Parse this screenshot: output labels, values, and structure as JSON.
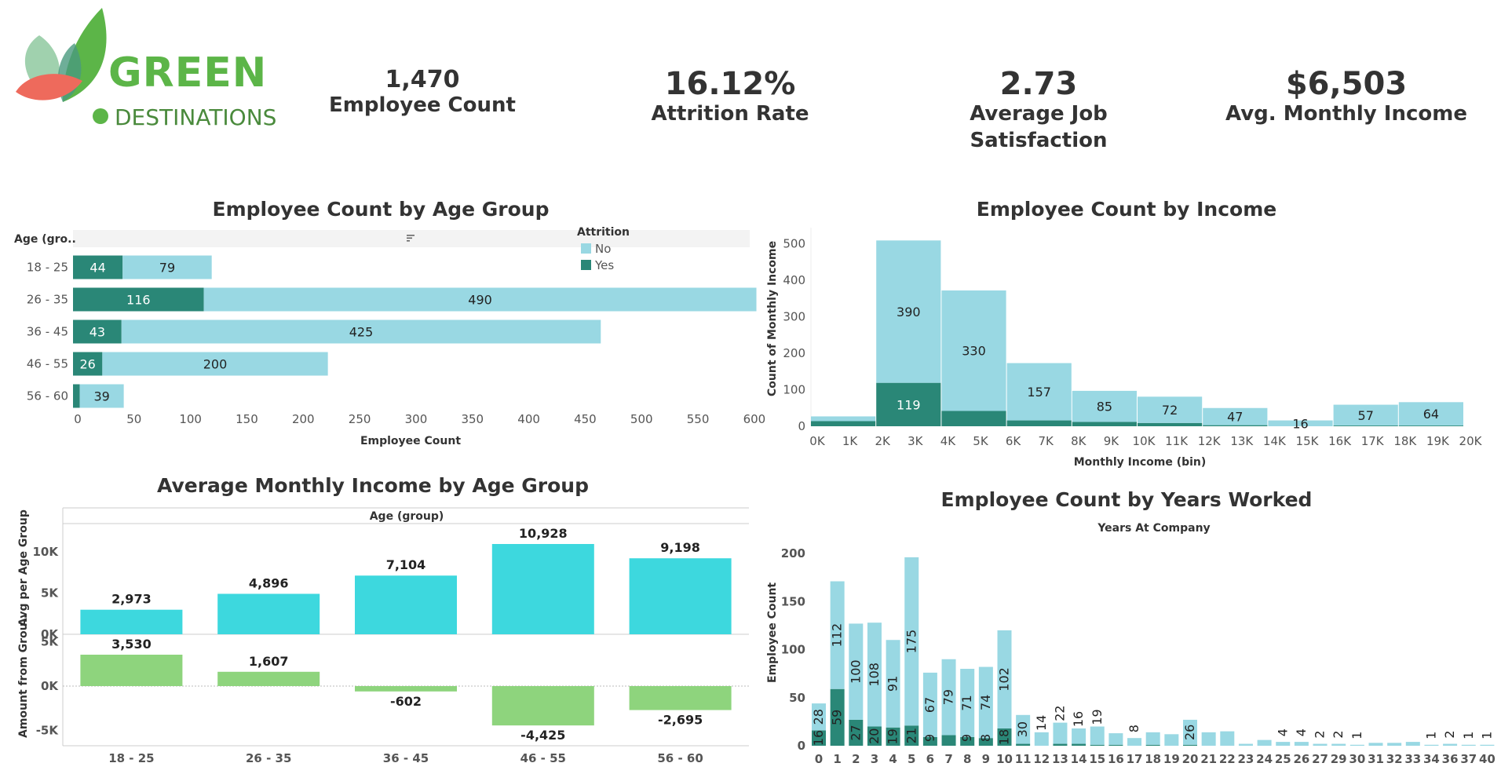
{
  "logo": {
    "line1": "GREEN",
    "line2": "DESTINATIONS"
  },
  "kpis": [
    {
      "value": "1,470",
      "label": "Employee Count"
    },
    {
      "value": "16.12%",
      "label": "Attrition Rate"
    },
    {
      "value": "2.73",
      "label": "Average Job Satisfaction"
    },
    {
      "value": "$6,503",
      "label": "Avg. Monthly Income"
    }
  ],
  "colors": {
    "no": "#99d8e3",
    "yes": "#2a8777",
    "income": "#3dd8de",
    "positive": "#8ed47d",
    "negative": "#8ed47d"
  },
  "chart_data": [
    {
      "type": "bar",
      "orientation": "horizontal",
      "stacked": true,
      "title": "Employee Count by Age Group",
      "ylabel": "Age (gro..",
      "xlabel": "Employee Count",
      "categories": [
        "18 - 25",
        "26 - 35",
        "36 - 45",
        "46 - 55",
        "56 - 60"
      ],
      "series": [
        {
          "name": "Yes",
          "values": [
            44,
            116,
            43,
            26,
            6
          ]
        },
        {
          "name": "No",
          "values": [
            79,
            490,
            425,
            200,
            39
          ]
        }
      ],
      "bar_labels": {
        "Yes": [
          "44",
          "116",
          "43",
          "26",
          ""
        ],
        "No": [
          "79",
          "490",
          "425",
          "200",
          "39"
        ]
      },
      "xticks": [
        0,
        50,
        100,
        150,
        200,
        250,
        300,
        350,
        400,
        450,
        500,
        550,
        600
      ],
      "xlim": [
        0,
        630
      ],
      "legend": {
        "title": "Attrition",
        "entries": [
          "No",
          "Yes"
        ],
        "position": "top-right"
      },
      "sort_icon": "sort-icon"
    },
    {
      "type": "bar",
      "stacked": true,
      "title": "Employee Count by Income",
      "xlabel": "Monthly Income (bin)",
      "ylabel": "Count of Monthly Income",
      "x": [
        "0K",
        "1K",
        "2K",
        "3K",
        "4K",
        "5K",
        "6K",
        "7K",
        "8K",
        "9K",
        "10K",
        "11K",
        "12K",
        "13K",
        "14K",
        "15K",
        "16K",
        "17K",
        "18K",
        "19K",
        "20K"
      ],
      "bins": [
        {
          "start": 0,
          "end": 2,
          "no": 13,
          "yes": 14,
          "label": ""
        },
        {
          "start": 2,
          "end": 4,
          "no": 390,
          "yes": 119,
          "label_no": "390",
          "label_yes": "119"
        },
        {
          "start": 4,
          "end": 6,
          "no": 330,
          "yes": 42,
          "label_no": "330",
          "label_yes": ""
        },
        {
          "start": 6,
          "end": 8,
          "no": 157,
          "yes": 16,
          "label_no": "157",
          "label_yes": ""
        },
        {
          "start": 8,
          "end": 10,
          "no": 85,
          "yes": 12,
          "label_no": "85",
          "label_yes": ""
        },
        {
          "start": 10,
          "end": 12,
          "no": 72,
          "yes": 9,
          "label_no": "72",
          "label_yes": ""
        },
        {
          "start": 12,
          "end": 14,
          "no": 47,
          "yes": 3,
          "label_no": "47",
          "label_yes": ""
        },
        {
          "start": 14,
          "end": 16,
          "no": 16,
          "yes": 0,
          "label_no": "16",
          "label_yes": ""
        },
        {
          "start": 16,
          "end": 18,
          "no": 57,
          "yes": 2,
          "label_no": "57",
          "label_yes": ""
        },
        {
          "start": 18,
          "end": 20,
          "no": 64,
          "yes": 2,
          "label_no": "64",
          "label_yes": ""
        }
      ],
      "yticks": [
        0,
        100,
        200,
        300,
        400,
        500
      ],
      "ylim": [
        0,
        520
      ],
      "xlim": [
        0,
        20.3
      ]
    },
    {
      "type": "bar",
      "title": "Average Monthly Income by Age Group",
      "xlabel": "Age (group)",
      "panels": [
        {
          "ylabel": "Avg per Age Group",
          "values": [
            2973,
            4896,
            7104,
            10928,
            9198
          ],
          "labels": [
            "2,973",
            "4,896",
            "7,104",
            "10,928",
            "9,198"
          ],
          "yticks": [
            {
              "v": 0,
              "t": "0K"
            },
            {
              "v": 5000,
              "t": "5K"
            },
            {
              "v": 10000,
              "t": "10K"
            }
          ],
          "ylim": [
            0,
            11000
          ]
        },
        {
          "ylabel": "Amount from Grou..",
          "values": [
            3530,
            1607,
            -602,
            -4425,
            -2695
          ],
          "labels": [
            "3,530",
            "1,607",
            "-602",
            "-4,425",
            "-2,695"
          ],
          "yticks": [
            {
              "v": -5000,
              "t": "-5K"
            },
            {
              "v": 0,
              "t": "0K"
            },
            {
              "v": 5000,
              "t": "5K"
            }
          ],
          "ylim": [
            -5200,
            5000
          ]
        }
      ],
      "categories": [
        "18 - 25",
        "26 - 35",
        "36 - 45",
        "46 - 55",
        "56 - 60"
      ]
    },
    {
      "type": "bar",
      "stacked": true,
      "title": "Employee Count by Years Worked",
      "subtitle": "Years At Company",
      "ylabel": "Employee Count",
      "categories": [
        "0",
        "1",
        "2",
        "3",
        "4",
        "5",
        "6",
        "7",
        "8",
        "9",
        "10",
        "11",
        "12",
        "13",
        "14",
        "15",
        "16",
        "17",
        "18",
        "19",
        "20",
        "21",
        "22",
        "23",
        "24",
        "25",
        "26",
        "27",
        "29",
        "30",
        "31",
        "32",
        "33",
        "34",
        "36",
        "37",
        "40"
      ],
      "series": [
        {
          "name": "No",
          "values": [
            28,
            112,
            100,
            108,
            91,
            175,
            67,
            79,
            71,
            74,
            102,
            30,
            14,
            22,
            16,
            19,
            12,
            8,
            13,
            12,
            26,
            14,
            15,
            2,
            6,
            4,
            4,
            2,
            2,
            1,
            3,
            3,
            4,
            1,
            2,
            1,
            1
          ]
        },
        {
          "name": "Yes",
          "values": [
            16,
            59,
            27,
            20,
            19,
            21,
            9,
            11,
            9,
            8,
            18,
            2,
            0,
            2,
            2,
            1,
            1,
            0,
            1,
            0,
            1,
            0,
            0,
            0,
            0,
            0,
            0,
            0,
            0,
            0,
            0,
            0,
            0,
            0,
            0,
            0,
            0
          ]
        }
      ],
      "labels_no": [
        "28",
        "112",
        "100",
        "108",
        "91",
        "175",
        "67",
        "79",
        "71",
        "74",
        "102",
        "30",
        "14",
        "22",
        "16",
        "19",
        "",
        "8",
        "",
        "",
        "26",
        "",
        "",
        "",
        "",
        "4",
        "4",
        "2",
        "2",
        "1",
        "",
        "",
        "",
        "1",
        "2",
        "1",
        "1"
      ],
      "labels_yes": [
        "16",
        "59",
        "27",
        "20",
        "19",
        "21",
        "9",
        "",
        "9",
        "8",
        "18",
        "",
        "",
        "",
        "",
        "",
        "",
        "",
        "",
        "",
        "",
        "",
        "",
        "",
        "",
        "",
        "",
        "",
        "",
        "",
        "",
        "",
        "",
        "",
        "",
        "",
        ""
      ],
      "yticks": [
        0,
        50,
        100,
        150,
        200
      ],
      "ylim": [
        0,
        205
      ]
    }
  ]
}
